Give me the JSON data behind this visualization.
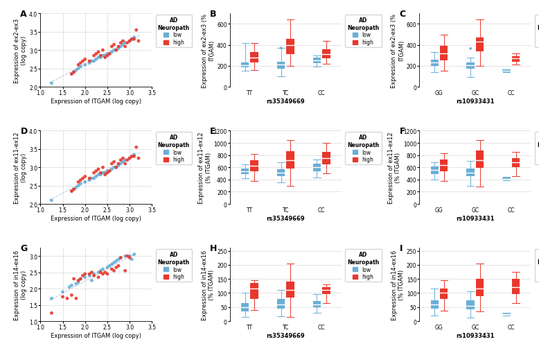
{
  "scatter_A": {
    "low_x": [
      1.25,
      1.7,
      1.75,
      1.8,
      1.85,
      1.9,
      2.0,
      2.1,
      2.15,
      2.2,
      2.25,
      2.3,
      2.35,
      2.4,
      2.45,
      2.5,
      2.55,
      2.6,
      2.65,
      2.7,
      2.75,
      2.8,
      2.85,
      2.9,
      3.0,
      3.05,
      3.1
    ],
    "low_y": [
      2.1,
      2.35,
      2.4,
      2.45,
      2.5,
      2.55,
      2.6,
      2.65,
      2.7,
      2.7,
      2.75,
      2.8,
      2.8,
      2.85,
      2.85,
      2.9,
      2.9,
      2.95,
      3.0,
      3.0,
      3.05,
      3.1,
      3.15,
      3.2,
      3.25,
      3.3,
      3.35
    ],
    "high_x": [
      1.7,
      1.75,
      1.85,
      1.9,
      1.95,
      2.0,
      2.1,
      2.2,
      2.25,
      2.3,
      2.35,
      2.4,
      2.45,
      2.5,
      2.55,
      2.6,
      2.65,
      2.7,
      2.75,
      2.8,
      2.85,
      2.9,
      2.95,
      3.0,
      3.05,
      3.1,
      3.15,
      3.2
    ],
    "high_y": [
      2.35,
      2.4,
      2.6,
      2.65,
      2.7,
      2.75,
      2.7,
      2.85,
      2.9,
      2.95,
      2.85,
      3.0,
      2.8,
      2.85,
      2.9,
      3.1,
      3.15,
      3.0,
      3.1,
      3.2,
      3.25,
      3.1,
      3.2,
      3.25,
      3.3,
      3.3,
      3.55,
      3.25
    ],
    "xlim": [
      1.0,
      3.5
    ],
    "ylim": [
      2.0,
      4.0
    ],
    "xticks": [
      1.0,
      1.5,
      2.0,
      2.5,
      3.0,
      3.5
    ],
    "yticks": [
      2.0,
      2.5,
      3.0,
      3.5,
      4.0
    ],
    "xlabel": "Expression of ITGAM (log copy)",
    "ylabel": "Expression of ex2-ex3\n(log copy)"
  },
  "scatter_D": {
    "low_x": [
      1.25,
      1.7,
      1.75,
      1.8,
      1.85,
      1.9,
      2.0,
      2.1,
      2.15,
      2.2,
      2.25,
      2.3,
      2.35,
      2.4,
      2.45,
      2.5,
      2.55,
      2.6,
      2.65,
      2.7,
      2.75,
      2.8,
      2.85,
      2.9,
      3.0,
      3.05,
      3.1
    ],
    "low_y": [
      2.1,
      2.35,
      2.4,
      2.45,
      2.5,
      2.55,
      2.6,
      2.65,
      2.7,
      2.7,
      2.75,
      2.8,
      2.8,
      2.85,
      2.85,
      2.9,
      2.9,
      2.95,
      3.0,
      3.0,
      3.05,
      3.1,
      3.15,
      3.2,
      3.25,
      3.3,
      3.35
    ],
    "high_x": [
      1.7,
      1.75,
      1.85,
      1.9,
      1.95,
      2.0,
      2.1,
      2.2,
      2.25,
      2.3,
      2.35,
      2.4,
      2.45,
      2.5,
      2.55,
      2.6,
      2.65,
      2.7,
      2.75,
      2.8,
      2.85,
      2.9,
      2.95,
      3.0,
      3.05,
      3.1,
      3.15,
      3.2
    ],
    "high_y": [
      2.35,
      2.4,
      2.6,
      2.65,
      2.7,
      2.75,
      2.7,
      2.85,
      2.9,
      2.95,
      2.85,
      3.0,
      2.8,
      2.85,
      2.9,
      3.1,
      3.15,
      3.0,
      3.1,
      3.2,
      3.25,
      3.1,
      3.2,
      3.25,
      3.3,
      3.3,
      3.55,
      3.25
    ],
    "xlim": [
      1.0,
      3.5
    ],
    "ylim": [
      2.0,
      4.0
    ],
    "xticks": [
      1.0,
      1.5,
      2.0,
      2.5,
      3.0,
      3.5
    ],
    "yticks": [
      2.0,
      2.5,
      3.0,
      3.5,
      4.0
    ],
    "xlabel": "Expression of ITGAM (log copy)",
    "ylabel": "Expression of ex11-ex12\n(log copy)"
  },
  "scatter_G": {
    "low_x": [
      1.25,
      1.5,
      1.65,
      1.7,
      1.8,
      1.85,
      1.9,
      2.0,
      2.1,
      2.15,
      2.2,
      2.3,
      2.35,
      2.4,
      2.5,
      2.55,
      2.6,
      2.65,
      2.7,
      2.75,
      2.8,
      2.9,
      3.0,
      3.05,
      3.1
    ],
    "low_y": [
      1.7,
      1.9,
      2.05,
      2.1,
      2.15,
      2.2,
      2.3,
      2.35,
      2.4,
      2.25,
      2.45,
      2.5,
      2.55,
      2.6,
      2.65,
      2.7,
      2.75,
      2.8,
      2.85,
      2.9,
      2.95,
      3.0,
      3.0,
      2.9,
      3.05
    ],
    "high_x": [
      1.25,
      1.5,
      1.6,
      1.7,
      1.75,
      1.8,
      1.85,
      1.9,
      1.95,
      2.0,
      2.1,
      2.15,
      2.2,
      2.3,
      2.35,
      2.4,
      2.45,
      2.5,
      2.6,
      2.65,
      2.7,
      2.75,
      2.8,
      2.9,
      2.95,
      3.0
    ],
    "high_y": [
      1.25,
      1.75,
      1.7,
      1.8,
      2.3,
      1.7,
      2.25,
      2.3,
      2.4,
      2.45,
      2.45,
      2.5,
      2.4,
      2.35,
      2.5,
      2.45,
      2.5,
      2.45,
      2.6,
      2.55,
      2.65,
      2.7,
      2.95,
      2.55,
      3.0,
      2.95
    ],
    "xlim": [
      1.0,
      3.5
    ],
    "ylim": [
      1.0,
      3.25
    ],
    "xticks": [
      1.0,
      1.5,
      2.0,
      2.5,
      3.0,
      3.5
    ],
    "yticks": [
      1.0,
      1.5,
      2.0,
      2.5,
      3.0
    ],
    "xlabel": "Expression of ITGAM (log copy)",
    "ylabel": "Expression of in14-ex16\n(log copy)"
  },
  "box_B": {
    "categories": [
      "TT",
      "TC",
      "CC"
    ],
    "xlabel": "rs35349669",
    "ylabel": "Expression of ex2-ex3 (%\nITGAM)",
    "ylim": [
      0,
      700
    ],
    "yticks": [
      0,
      200,
      400,
      600
    ],
    "low": {
      "TT": {
        "q1": 185,
        "med": 205,
        "q3": 235,
        "whislo": 150,
        "whishi": 420
      },
      "TC": {
        "q1": 175,
        "med": 215,
        "q3": 240,
        "whislo": 100,
        "whishi": 370
      },
      "CC": {
        "q1": 225,
        "med": 255,
        "q3": 280,
        "whislo": 190,
        "whishi": 300
      }
    },
    "high": {
      "TT": {
        "q1": 230,
        "med": 280,
        "q3": 330,
        "whislo": 160,
        "whishi": 420
      },
      "TC": {
        "q1": 310,
        "med": 400,
        "q3": 455,
        "whislo": 200,
        "whishi": 640
      },
      "CC": {
        "q1": 270,
        "med": 310,
        "q3": 360,
        "whislo": 220,
        "whishi": 440
      }
    },
    "low_outliers": {
      "TC": [
        370
      ]
    },
    "high_outliers": {}
  },
  "box_C": {
    "categories": [
      "GG",
      "GC",
      "CC"
    ],
    "xlabel": "rs10933431",
    "ylabel": "Expression of ex2-ex3 (%\nITGAM)",
    "ylim": [
      0,
      700
    ],
    "yticks": [
      0,
      200,
      400,
      600
    ],
    "low": {
      "GG": {
        "q1": 200,
        "med": 235,
        "q3": 260,
        "whislo": 140,
        "whishi": 330
      },
      "GC": {
        "q1": 175,
        "med": 205,
        "q3": 230,
        "whislo": 90,
        "whishi": 280
      },
      "CC": {
        "q1": 138,
        "med": 152,
        "q3": 165,
        "whislo": 138,
        "whishi": 165
      }
    },
    "high": {
      "GG": {
        "q1": 250,
        "med": 320,
        "q3": 390,
        "whislo": 155,
        "whishi": 500
      },
      "GC": {
        "q1": 340,
        "med": 430,
        "q3": 470,
        "whislo": 200,
        "whishi": 640
      },
      "CC": {
        "q1": 240,
        "med": 270,
        "q3": 295,
        "whislo": 215,
        "whishi": 320
      }
    },
    "low_outliers": {
      "GC": [
        365
      ]
    },
    "high_outliers": {}
  },
  "box_E": {
    "categories": [
      "TT",
      "TC",
      "CC"
    ],
    "xlabel": "rs35349669",
    "ylabel": "Expression of ex11-ex12\n(% ITGAM)",
    "ylim": [
      0,
      1200
    ],
    "yticks": [
      0,
      200,
      400,
      600,
      800,
      1000,
      1200
    ],
    "low": {
      "TT": {
        "q1": 490,
        "med": 540,
        "q3": 580,
        "whislo": 420,
        "whishi": 650
      },
      "TC": {
        "q1": 460,
        "med": 510,
        "q3": 570,
        "whislo": 350,
        "whishi": 680
      },
      "CC": {
        "q1": 530,
        "med": 600,
        "q3": 660,
        "whislo": 430,
        "whishi": 730
      }
    },
    "high": {
      "TT": {
        "q1": 530,
        "med": 620,
        "q3": 720,
        "whislo": 370,
        "whishi": 820
      },
      "TC": {
        "q1": 580,
        "med": 720,
        "q3": 860,
        "whislo": 300,
        "whishi": 1050
      },
      "CC": {
        "q1": 650,
        "med": 750,
        "q3": 850,
        "whislo": 500,
        "whishi": 1000
      }
    },
    "low_outliers": {},
    "high_outliers": {}
  },
  "box_F": {
    "categories": [
      "GG",
      "GC",
      "CC"
    ],
    "xlabel": "rs10933431",
    "ylabel": "Expression of ex11-ex12\n(% ITGAM)",
    "ylim": [
      0,
      1200
    ],
    "yticks": [
      0,
      200,
      400,
      600,
      800,
      1000,
      1200
    ],
    "low": {
      "GG": {
        "q1": 490,
        "med": 555,
        "q3": 610,
        "whislo": 400,
        "whishi": 680
      },
      "GC": {
        "q1": 450,
        "med": 510,
        "q3": 580,
        "whislo": 300,
        "whishi": 700
      },
      "CC": {
        "q1": 395,
        "med": 415,
        "q3": 435,
        "whislo": 385,
        "whishi": 440
      }
    },
    "high": {
      "GG": {
        "q1": 540,
        "med": 640,
        "q3": 730,
        "whislo": 380,
        "whishi": 830
      },
      "GC": {
        "q1": 590,
        "med": 720,
        "q3": 880,
        "whislo": 280,
        "whishi": 1050
      },
      "CC": {
        "q1": 600,
        "med": 680,
        "q3": 750,
        "whislo": 450,
        "whishi": 850
      }
    },
    "low_outliers": {},
    "high_outliers": {}
  },
  "box_H": {
    "categories": [
      "TT",
      "TC",
      "CC"
    ],
    "xlabel": "rs35349669",
    "ylabel": "Expression of in14-ex16\n(% ITGAM)",
    "ylim": [
      0,
      260
    ],
    "yticks": [
      0,
      50,
      100,
      150,
      200,
      250
    ],
    "low": {
      "TT": {
        "q1": 35,
        "med": 50,
        "q3": 65,
        "whislo": 15,
        "whishi": 100
      },
      "TC": {
        "q1": 45,
        "med": 60,
        "q3": 80,
        "whislo": 18,
        "whishi": 110
      },
      "CC": {
        "q1": 50,
        "med": 60,
        "q3": 72,
        "whislo": 30,
        "whishi": 95
      }
    },
    "high": {
      "TT": {
        "q1": 80,
        "med": 115,
        "q3": 135,
        "whislo": 40,
        "whishi": 145
      },
      "TC": {
        "q1": 85,
        "med": 110,
        "q3": 140,
        "whislo": 15,
        "whishi": 205
      },
      "CC": {
        "q1": 95,
        "med": 110,
        "q3": 120,
        "whislo": 65,
        "whishi": 130
      }
    },
    "low_outliers": {},
    "high_outliers": {}
  },
  "box_I": {
    "categories": [
      "GG",
      "GC",
      "CC"
    ],
    "xlabel": "rs10933431",
    "ylabel": "Expression of in14-ex16\n(% ITGAM)",
    "ylim": [
      0,
      260
    ],
    "yticks": [
      0,
      50,
      100,
      150,
      200,
      250
    ],
    "low": {
      "GG": {
        "q1": 45,
        "med": 60,
        "q3": 75,
        "whislo": 20,
        "whishi": 115
      },
      "GC": {
        "q1": 42,
        "med": 55,
        "q3": 75,
        "whislo": 12,
        "whishi": 105
      },
      "CC": {
        "q1": 22,
        "med": 25,
        "q3": 28,
        "whislo": 20,
        "whishi": 30
      }
    },
    "high": {
      "GG": {
        "q1": 80,
        "med": 100,
        "q3": 115,
        "whislo": 38,
        "whishi": 145
      },
      "GC": {
        "q1": 90,
        "med": 115,
        "q3": 150,
        "whislo": 35,
        "whishi": 205
      },
      "CC": {
        "q1": 95,
        "med": 120,
        "q3": 150,
        "whislo": 65,
        "whishi": 175
      }
    },
    "low_outliers": {},
    "high_outliers": {}
  },
  "colors": {
    "low": "#6aaed6",
    "high": "#e8372c",
    "scatter_line": "#b0c4de",
    "grid": "#d0d0d0",
    "background": "#FFFFFF"
  }
}
